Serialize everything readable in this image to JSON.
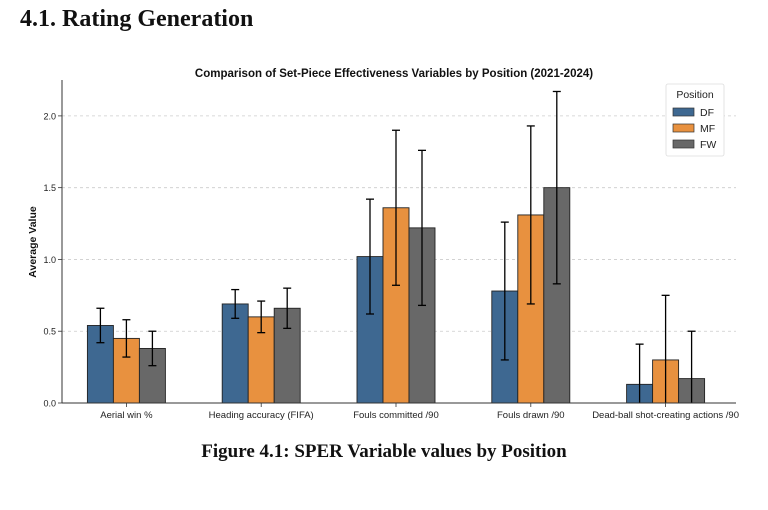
{
  "document": {
    "section_heading": "4.1. Rating Generation",
    "figure_caption": "Figure 4.1: SPER Variable values by Position"
  },
  "chart_data": {
    "type": "bar",
    "title": "Comparison of Set-Piece Effectiveness Variables by Position (2021-2024)",
    "xlabel": "",
    "ylabel": "Average Value",
    "ylim": [
      0,
      2.25
    ],
    "yticks": [
      0.0,
      0.5,
      1.0,
      1.5,
      2.0
    ],
    "ytick_labels": [
      "0.0",
      "0.5",
      "1.0",
      "1.5",
      "2.0"
    ],
    "grid": "horizontal dashed",
    "legend": {
      "title": "Position",
      "placement": "top-right"
    },
    "categories": [
      "Aerial win %",
      "Heading accuracy (FIFA)",
      "Fouls committed /90",
      "Fouls drawn /90",
      "Dead-ball shot-creating actions /90"
    ],
    "series": [
      {
        "name": "DF",
        "color": "#3e6891",
        "values": [
          0.54,
          0.69,
          1.02,
          0.78,
          0.13
        ],
        "error": [
          0.12,
          0.1,
          0.4,
          0.48,
          0.28
        ]
      },
      {
        "name": "MF",
        "color": "#e8913f",
        "values": [
          0.45,
          0.6,
          1.36,
          1.31,
          0.3
        ],
        "error": [
          0.13,
          0.11,
          0.54,
          0.62,
          0.45
        ]
      },
      {
        "name": "FW",
        "color": "#686868",
        "values": [
          0.38,
          0.66,
          1.22,
          1.5,
          0.17
        ],
        "error": [
          0.12,
          0.14,
          0.54,
          0.67,
          0.33
        ]
      }
    ]
  }
}
